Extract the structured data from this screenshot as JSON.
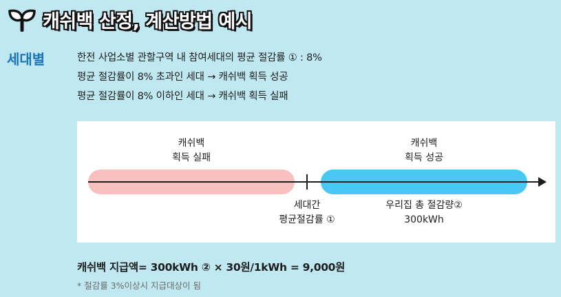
{
  "header": {
    "icon": "sprout-icon",
    "title": "캐쉬백 산정, 계산방법 예시"
  },
  "section": {
    "label": "세대별",
    "lines": [
      "한전 사업소별 관할구역 내 참여세대의 평균 절감률 ① : 8%",
      "평균 절감률이 8% 초과인 세대 → 캐쉬백 획득 성공",
      "평균 절감률이 8% 이하인 세대 → 캐쉬백 획득 실패"
    ]
  },
  "diagram": {
    "fail_line1": "캐쉬백",
    "fail_line2": "획득 실패",
    "success_line1": "캐쉬백",
    "success_line2": "획득 성공",
    "avg_line1": "세대간",
    "avg_line2": "평균절감률 ①",
    "usage_line1": "우리집 총 절감량②",
    "usage_line2": "300kWh",
    "colors": {
      "fail": "#f9c0c0",
      "success": "#49c8f5"
    }
  },
  "formula": "캐쉬백 지급액= 300kWh ② × 30원/1kWh = 9,000원",
  "note": "* 절감률 3%이상시 지급대상이 됨"
}
